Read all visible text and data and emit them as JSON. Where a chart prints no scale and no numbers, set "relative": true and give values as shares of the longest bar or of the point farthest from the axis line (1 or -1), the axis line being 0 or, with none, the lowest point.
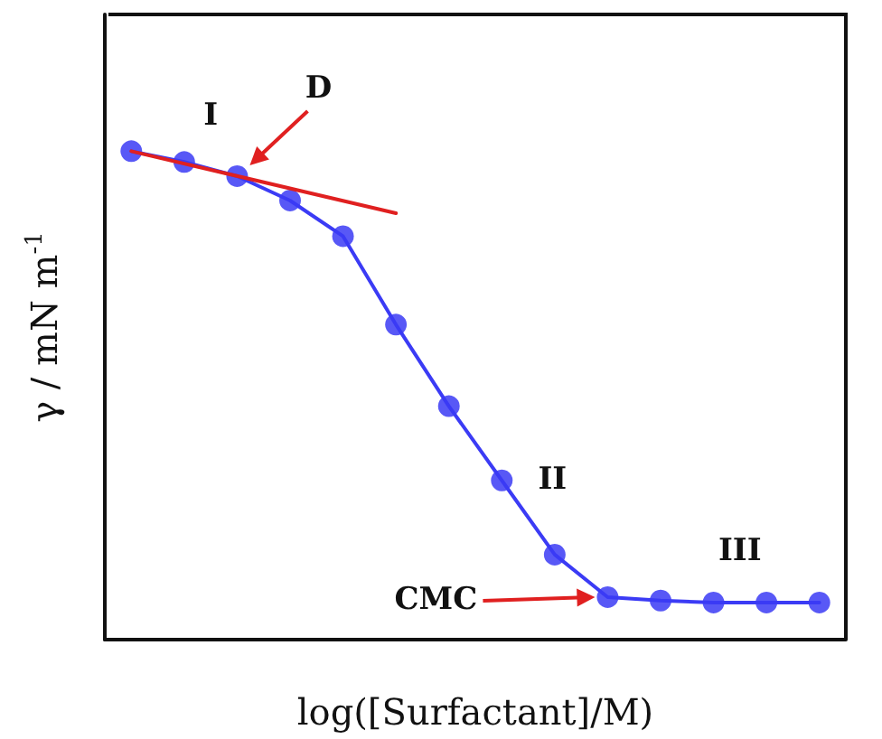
{
  "chart_data": {
    "type": "line",
    "relative": true,
    "xlabel": "log([Surfactant]/M)",
    "ylabel": "γ / mN m$^{-1}$",
    "grid": false,
    "marker": "circle",
    "line_style": "solid",
    "categories": [
      null,
      null,
      null,
      null,
      null,
      null,
      null,
      null,
      null,
      null,
      null,
      null,
      null,
      null
    ],
    "series": [
      {
        "color": "#3b3bf5",
        "values": [
          1,
          0.978,
          0.949,
          0.899,
          0.826,
          0.645,
          0.478,
          0.326,
          0.174,
          0.087,
          0.08,
          0.076,
          0.076,
          0.076
        ]
      },
      {
        "color": "#e02020",
        "marker": "none",
        "values": [
          1.0,
          null,
          null,
          null,
          null,
          0.873,
          null,
          null,
          null,
          null,
          null,
          null,
          null,
          null
        ]
      }
    ],
    "annotations": [
      "D",
      "CMC",
      "I",
      "II",
      "III"
    ]
  }
}
